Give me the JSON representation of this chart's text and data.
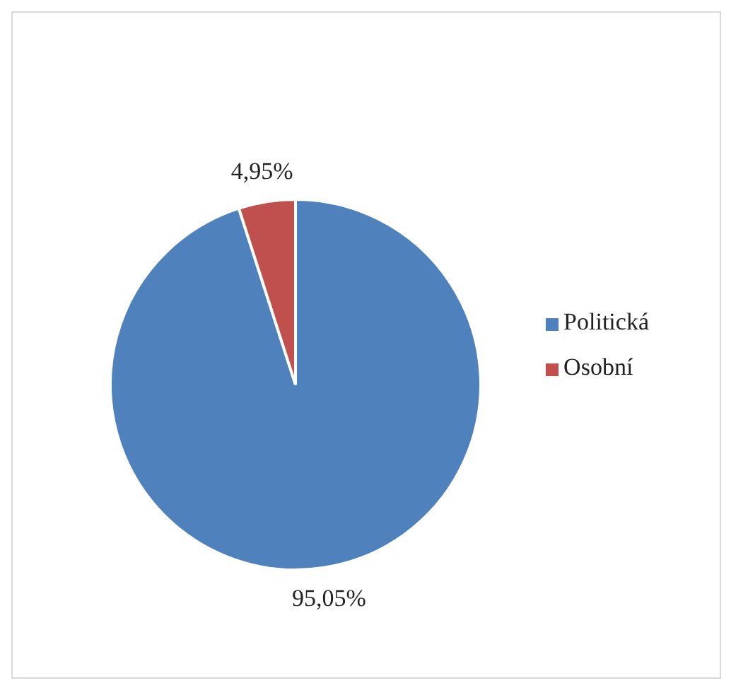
{
  "chart_data": {
    "type": "pie",
    "categories": [
      "Politická",
      "Osobní"
    ],
    "values": [
      95.05,
      4.95
    ],
    "colors": [
      "#4f81bd",
      "#c0504d"
    ],
    "value_labels": [
      "95,05%",
      "4,95%"
    ],
    "legend": "right"
  }
}
